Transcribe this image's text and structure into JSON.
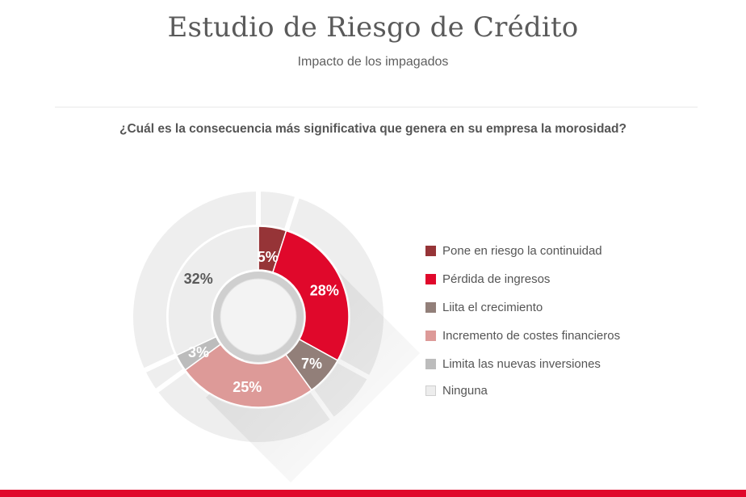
{
  "header": {
    "title": "Estudio de Riesgo de Crédito",
    "subtitle": "Impacto de los impagados"
  },
  "chart_data": {
    "type": "pie",
    "title": "¿Cuál es la consecuencia más significativa que genera en su empresa la morosidad?",
    "unit": "%",
    "slices": [
      {
        "name": "Pone en riesgo la continuidad",
        "value": 5,
        "label": "5%",
        "color": "#963437",
        "label_color": "#ffffff"
      },
      {
        "name": "Pérdida de ingresos",
        "value": 28,
        "label": "28%",
        "color": "#e0082b",
        "label_color": "#ffffff"
      },
      {
        "name": "Liita el crecimiento",
        "value": 7,
        "label": "7%",
        "color": "#927f79",
        "label_color": "#ffffff"
      },
      {
        "name": "Incremento de costes financieros",
        "value": 25,
        "label": "25%",
        "color": "#dd9a98",
        "label_color": "#ffffff"
      },
      {
        "name": "Limita las nuevas inversiones",
        "value": 3,
        "label": "3%",
        "color": "#bcbcbc",
        "label_color": "#ffffff"
      },
      {
        "name": "Ninguna",
        "value": 32,
        "label": "32%",
        "color": "#ededed",
        "label_color": "#5a5a5a"
      }
    ],
    "legend_position": "right"
  }
}
